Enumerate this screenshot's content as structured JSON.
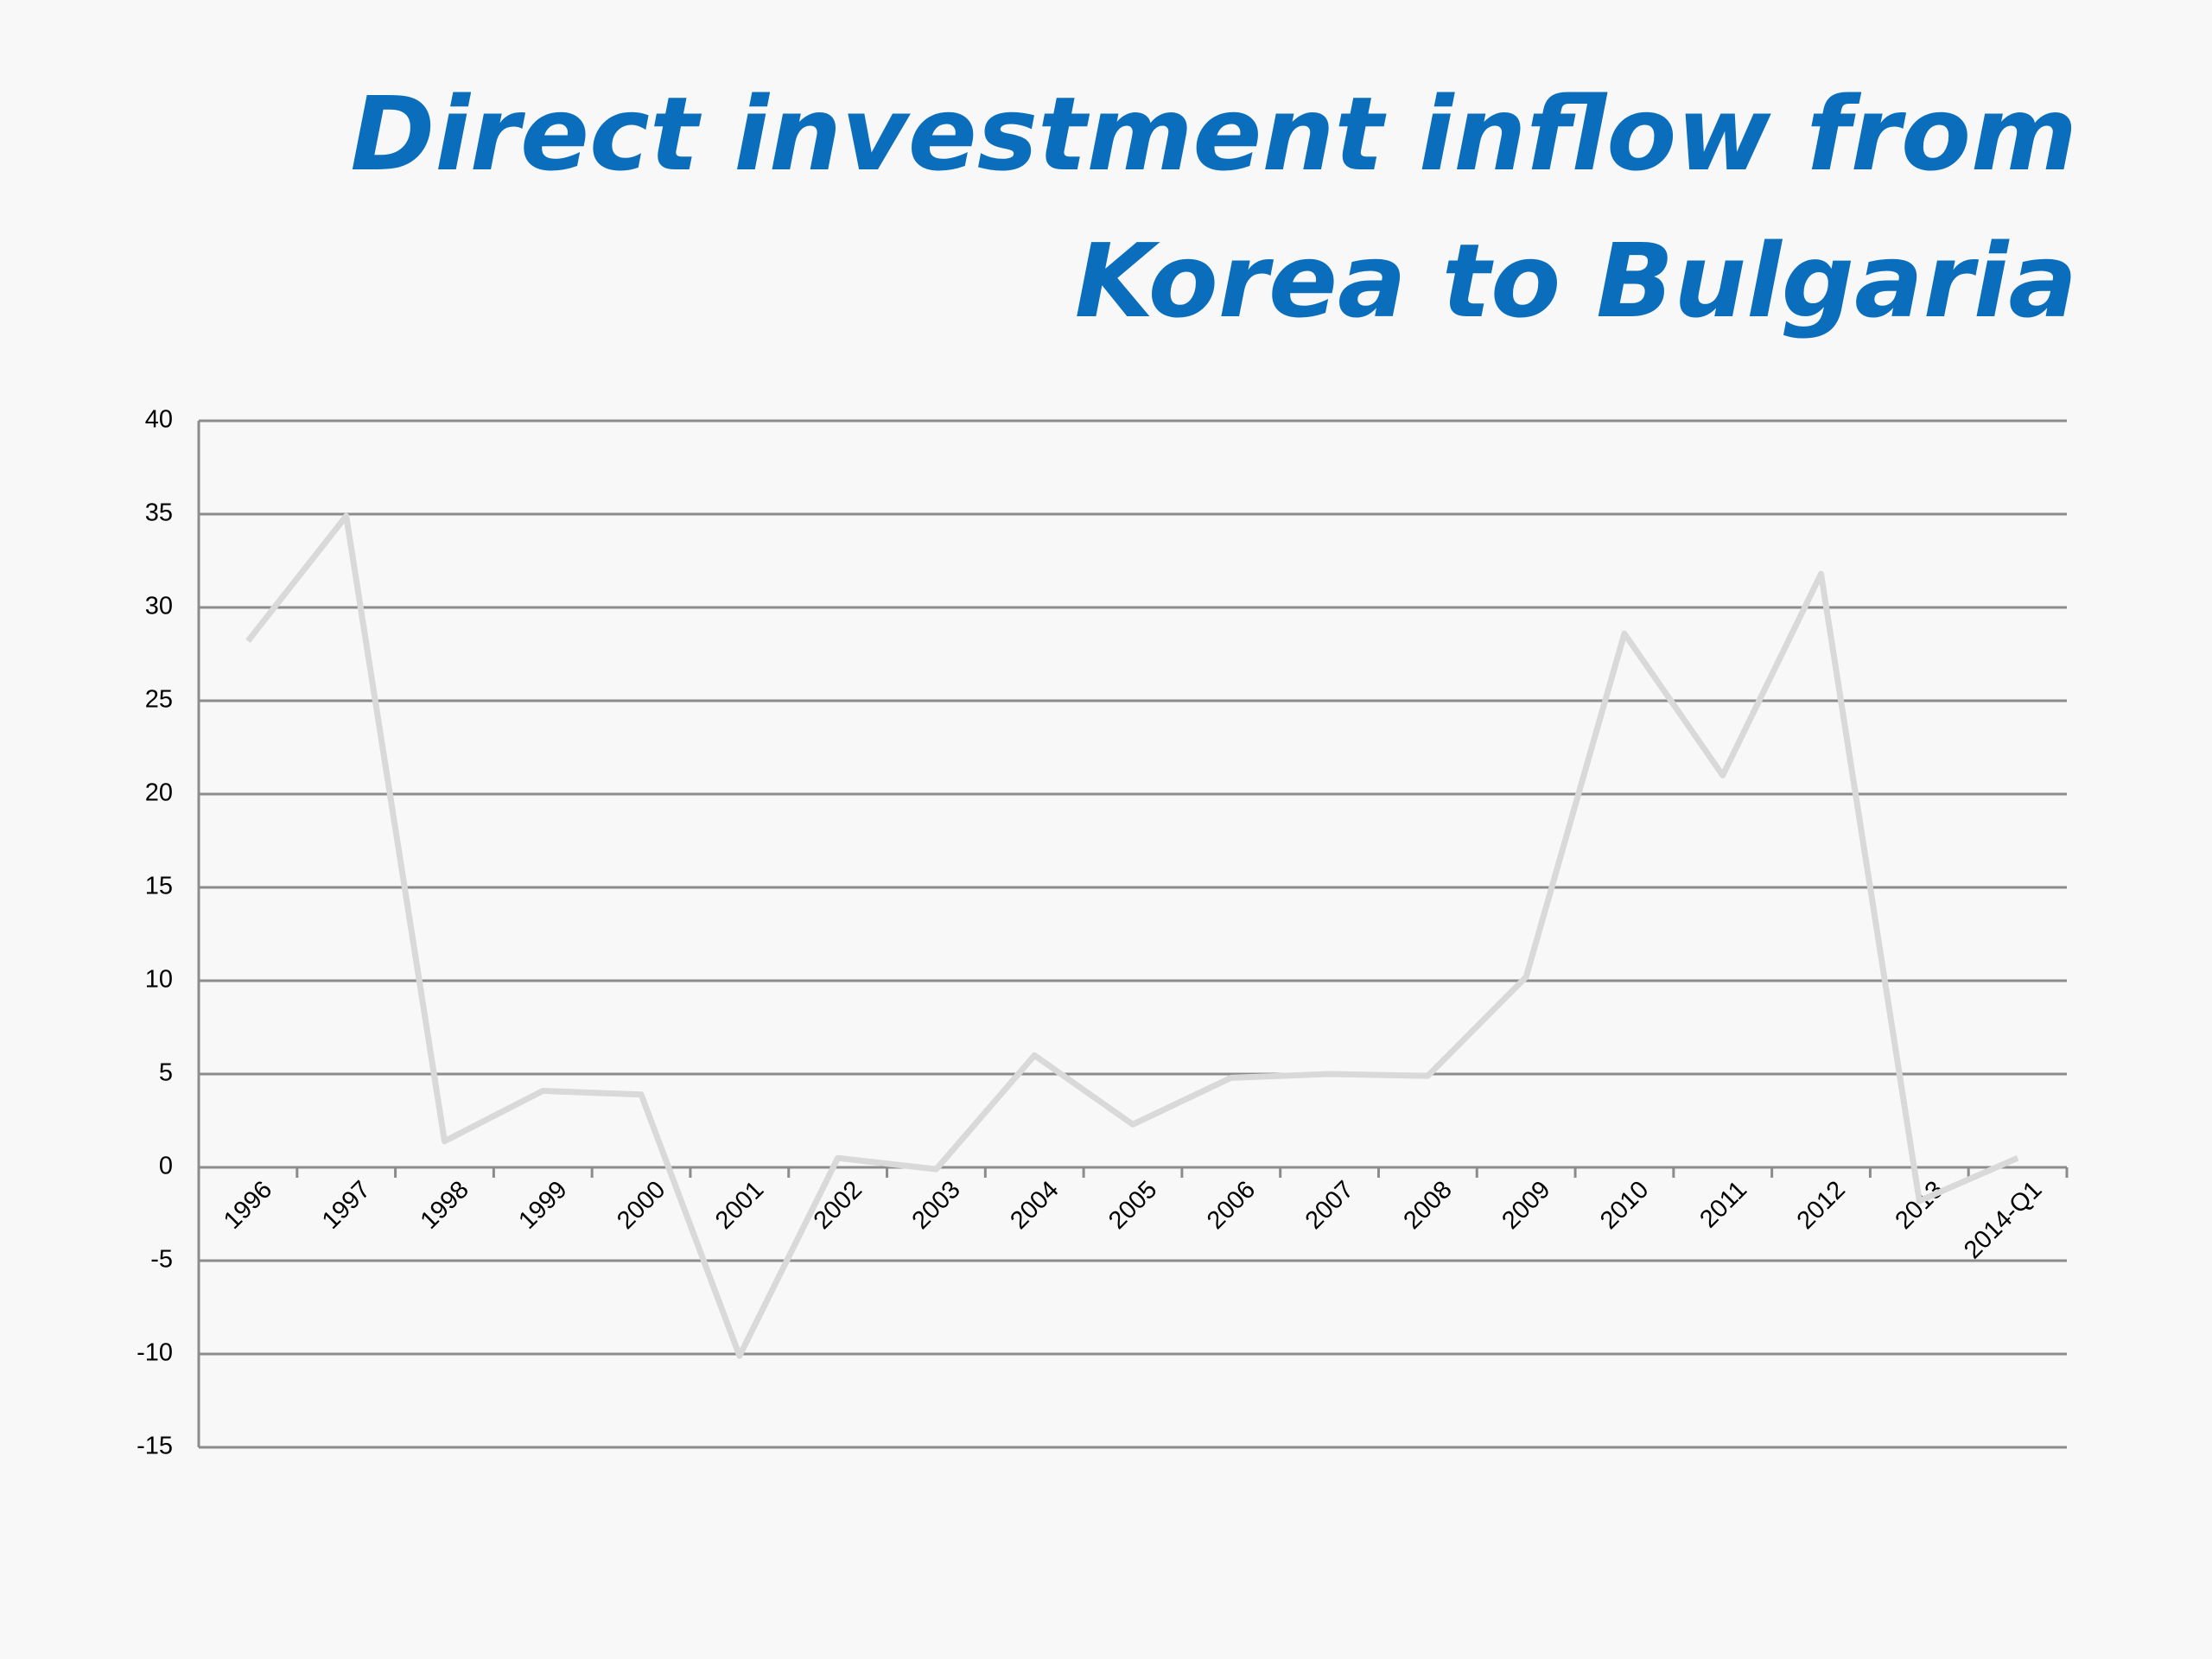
{
  "chart_data": {
    "type": "line",
    "title": "Direct investment inflow from Korea to Bulgaria",
    "categories": [
      "1996",
      "1997",
      "1998",
      "1999",
      "2000",
      "2001",
      "2002",
      "2003",
      "2004",
      "2005",
      "2006",
      "2007",
      "2008",
      "2009",
      "2010",
      "2011",
      "2012",
      "2013",
      "2014-Q1"
    ],
    "values": [
      28.2,
      34.9,
      1.4,
      4.1,
      3.9,
      -10.1,
      0.5,
      -0.1,
      6.0,
      2.3,
      4.8,
      5.0,
      4.9,
      10.2,
      28.6,
      21.0,
      31.8,
      -1.8,
      0.5
    ],
    "color": "#d9d9d9",
    "ylim": [
      -15,
      40
    ],
    "yticks": [
      -15,
      -10,
      -5,
      0,
      5,
      10,
      15,
      20,
      25,
      30,
      35,
      40
    ],
    "grid": true
  }
}
